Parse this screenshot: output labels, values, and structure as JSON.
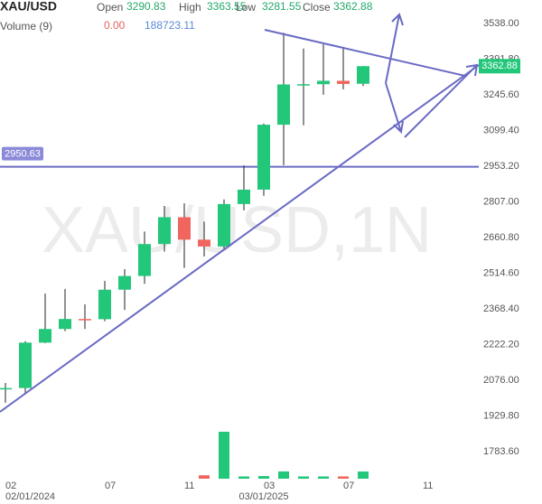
{
  "chart_data": {
    "type": "candlestick",
    "title": "XAU/USD",
    "watermark": "XAU/USD,1N",
    "header_labels": {
      "open": "Open",
      "high": "High",
      "low": "Low",
      "close": "Close"
    },
    "volume_label": "Volume (9)",
    "volume_change": {
      "value": 0,
      "label": "0.00"
    },
    "open": [
      2039,
      2044,
      2230,
      2286,
      2327,
      2326,
      2447,
      2503,
      2634,
      2744,
      2652,
      2624,
      2798,
      2857,
      3123,
      3288,
      3289,
      3303,
      3290.83
    ],
    "high": [
      2065,
      2236,
      2431,
      2450,
      2387,
      2483,
      2531,
      2685,
      2790,
      2801,
      2726,
      2817,
      2956,
      3128,
      3500,
      3435,
      3452,
      3439,
      3363.55
    ],
    "low": [
      1984,
      2024,
      2228,
      2277,
      2286,
      2318,
      2364,
      2471,
      2603,
      2536,
      2583,
      2614,
      2772,
      2832,
      2957,
      3121,
      3246,
      3268,
      3281.55
    ],
    "close": [
      2044,
      2230,
      2286,
      2327,
      2326,
      2447,
      2503,
      2634,
      2744,
      2652,
      2624,
      2798,
      2857,
      3123,
      3288,
      3289,
      3303,
      3290,
      3362.88
    ],
    "volume": [
      null,
      null,
      null,
      null,
      null,
      null,
      null,
      null,
      null,
      null,
      90000,
      1230000,
      60000,
      70000,
      190000,
      60000,
      60000,
      60000,
      188723.11
    ],
    "up_color": "#22c77a",
    "down_color": "#f0665e",
    "line_color": "#6a6ac4",
    "ylim": [
      1654,
      3634
    ],
    "yticks": [
      {
        "value": 3538,
        "label": "3538.00"
      },
      {
        "value": 3391.8,
        "label": "3391.80"
      },
      {
        "value": 3245.6,
        "label": "3245.60"
      },
      {
        "value": 3099.4,
        "label": "3099.40"
      },
      {
        "value": 2953.2,
        "label": "2953.20"
      },
      {
        "value": 2807,
        "label": "2807.00"
      },
      {
        "value": 2660.8,
        "label": "2660.80"
      },
      {
        "value": 2514.6,
        "label": "2514.60"
      },
      {
        "value": 2368.4,
        "label": "2368.40"
      },
      {
        "value": 2222.2,
        "label": "2222.20"
      },
      {
        "value": 2076,
        "label": "2076.00"
      },
      {
        "value": 1929.8,
        "label": "1929.80"
      },
      {
        "value": 1783.6,
        "label": "1783.60"
      }
    ],
    "xticks": [
      {
        "value": 0,
        "label": "02"
      },
      {
        "value": 5,
        "label": "07"
      },
      {
        "value": 9,
        "label": "11"
      },
      {
        "value": 13,
        "label": "03"
      },
      {
        "value": 17,
        "label": "07"
      },
      {
        "value": 21,
        "label": "11"
      }
    ],
    "date_labels": [
      {
        "value": 0,
        "label": "02/01/2024"
      },
      {
        "value": 13,
        "label": "03/01/2025"
      }
    ],
    "hline": 2950.63
  }
}
